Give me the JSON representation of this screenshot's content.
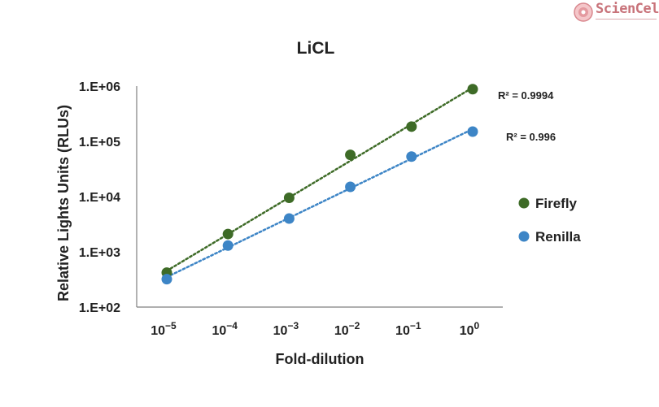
{
  "logo": {
    "text": "ScienCell"
  },
  "chart_data": {
    "type": "scatter",
    "title": "LiCL",
    "xlabel": "Fold-dilution",
    "ylabel": "Relative Lights Units (RLUs)",
    "y_scale": "log",
    "ylim": [
      100,
      1000000
    ],
    "x_ticks": [
      {
        "base": "10",
        "exp": "−5"
      },
      {
        "base": "10",
        "exp": "−4"
      },
      {
        "base": "10",
        "exp": "−3"
      },
      {
        "base": "10",
        "exp": "−2"
      },
      {
        "base": "10",
        "exp": "−1"
      },
      {
        "base": "10",
        "exp": "0"
      }
    ],
    "x_values": [
      1e-05,
      0.0001,
      0.001,
      0.01,
      0.1,
      1
    ],
    "y_ticks": [
      {
        "value": 100,
        "label": "1.E+02"
      },
      {
        "value": 1000,
        "label": "1.E+03"
      },
      {
        "value": 10000,
        "label": "1.E+04"
      },
      {
        "value": 100000,
        "label": "1.E+05"
      },
      {
        "value": 1000000,
        "label": "1.E+06"
      }
    ],
    "series": [
      {
        "name": "Firefly",
        "color": "#3e6b27",
        "values": [
          420,
          2100,
          9500,
          57000,
          185000,
          880000
        ],
        "r2_label": "R² = 0.9994"
      },
      {
        "name": "Renilla",
        "color": "#3d85c6",
        "values": [
          320,
          1300,
          4000,
          15000,
          53000,
          150000
        ],
        "r2_label": "R² = 0.996"
      }
    ],
    "trendline": "dotted linear fit",
    "grid": false,
    "legend_position": "right"
  }
}
